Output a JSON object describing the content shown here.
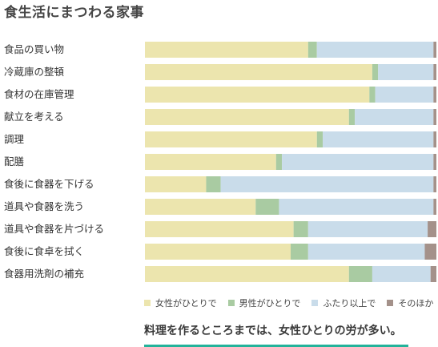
{
  "page": {
    "title": "食生活にまつわる家事",
    "caption": "料理を作るところまでは、女性ひとりの労が多い。"
  },
  "chart_data": {
    "type": "bar",
    "orientation": "horizontal",
    "stacked": true,
    "percent": true,
    "categories": [
      "食品の買い物",
      "冷蔵庫の整頓",
      "食材の在庫管理",
      "献立を考える",
      "調理",
      "配膳",
      "食後に食器を下げる",
      "道具や食器を洗う",
      "道具や食器を片づける",
      "食後に食卓を拭く",
      "食器用洗剤の補充"
    ],
    "series": [
      {
        "name": "女性がひとりで",
        "color": "#ece5ae",
        "values": [
          56,
          78,
          77,
          70,
          59,
          45,
          21,
          38,
          51,
          50,
          70
        ]
      },
      {
        "name": "男性がひとりで",
        "color": "#a9cba2",
        "values": [
          3,
          2,
          2,
          2,
          2,
          2,
          5,
          8,
          5,
          6,
          8
        ]
      },
      {
        "name": "ふたり以上で",
        "color": "#c9dcea",
        "values": [
          40,
          19,
          20,
          27,
          38,
          52,
          73,
          53,
          41,
          40,
          20
        ]
      },
      {
        "name": "そのほか",
        "color": "#a4918a",
        "values": [
          1,
          1,
          1,
          1,
          1,
          1,
          1,
          1,
          3,
          4,
          2
        ]
      }
    ],
    "xlim": [
      0,
      100
    ],
    "grid": false,
    "legend_position": "bottom"
  }
}
